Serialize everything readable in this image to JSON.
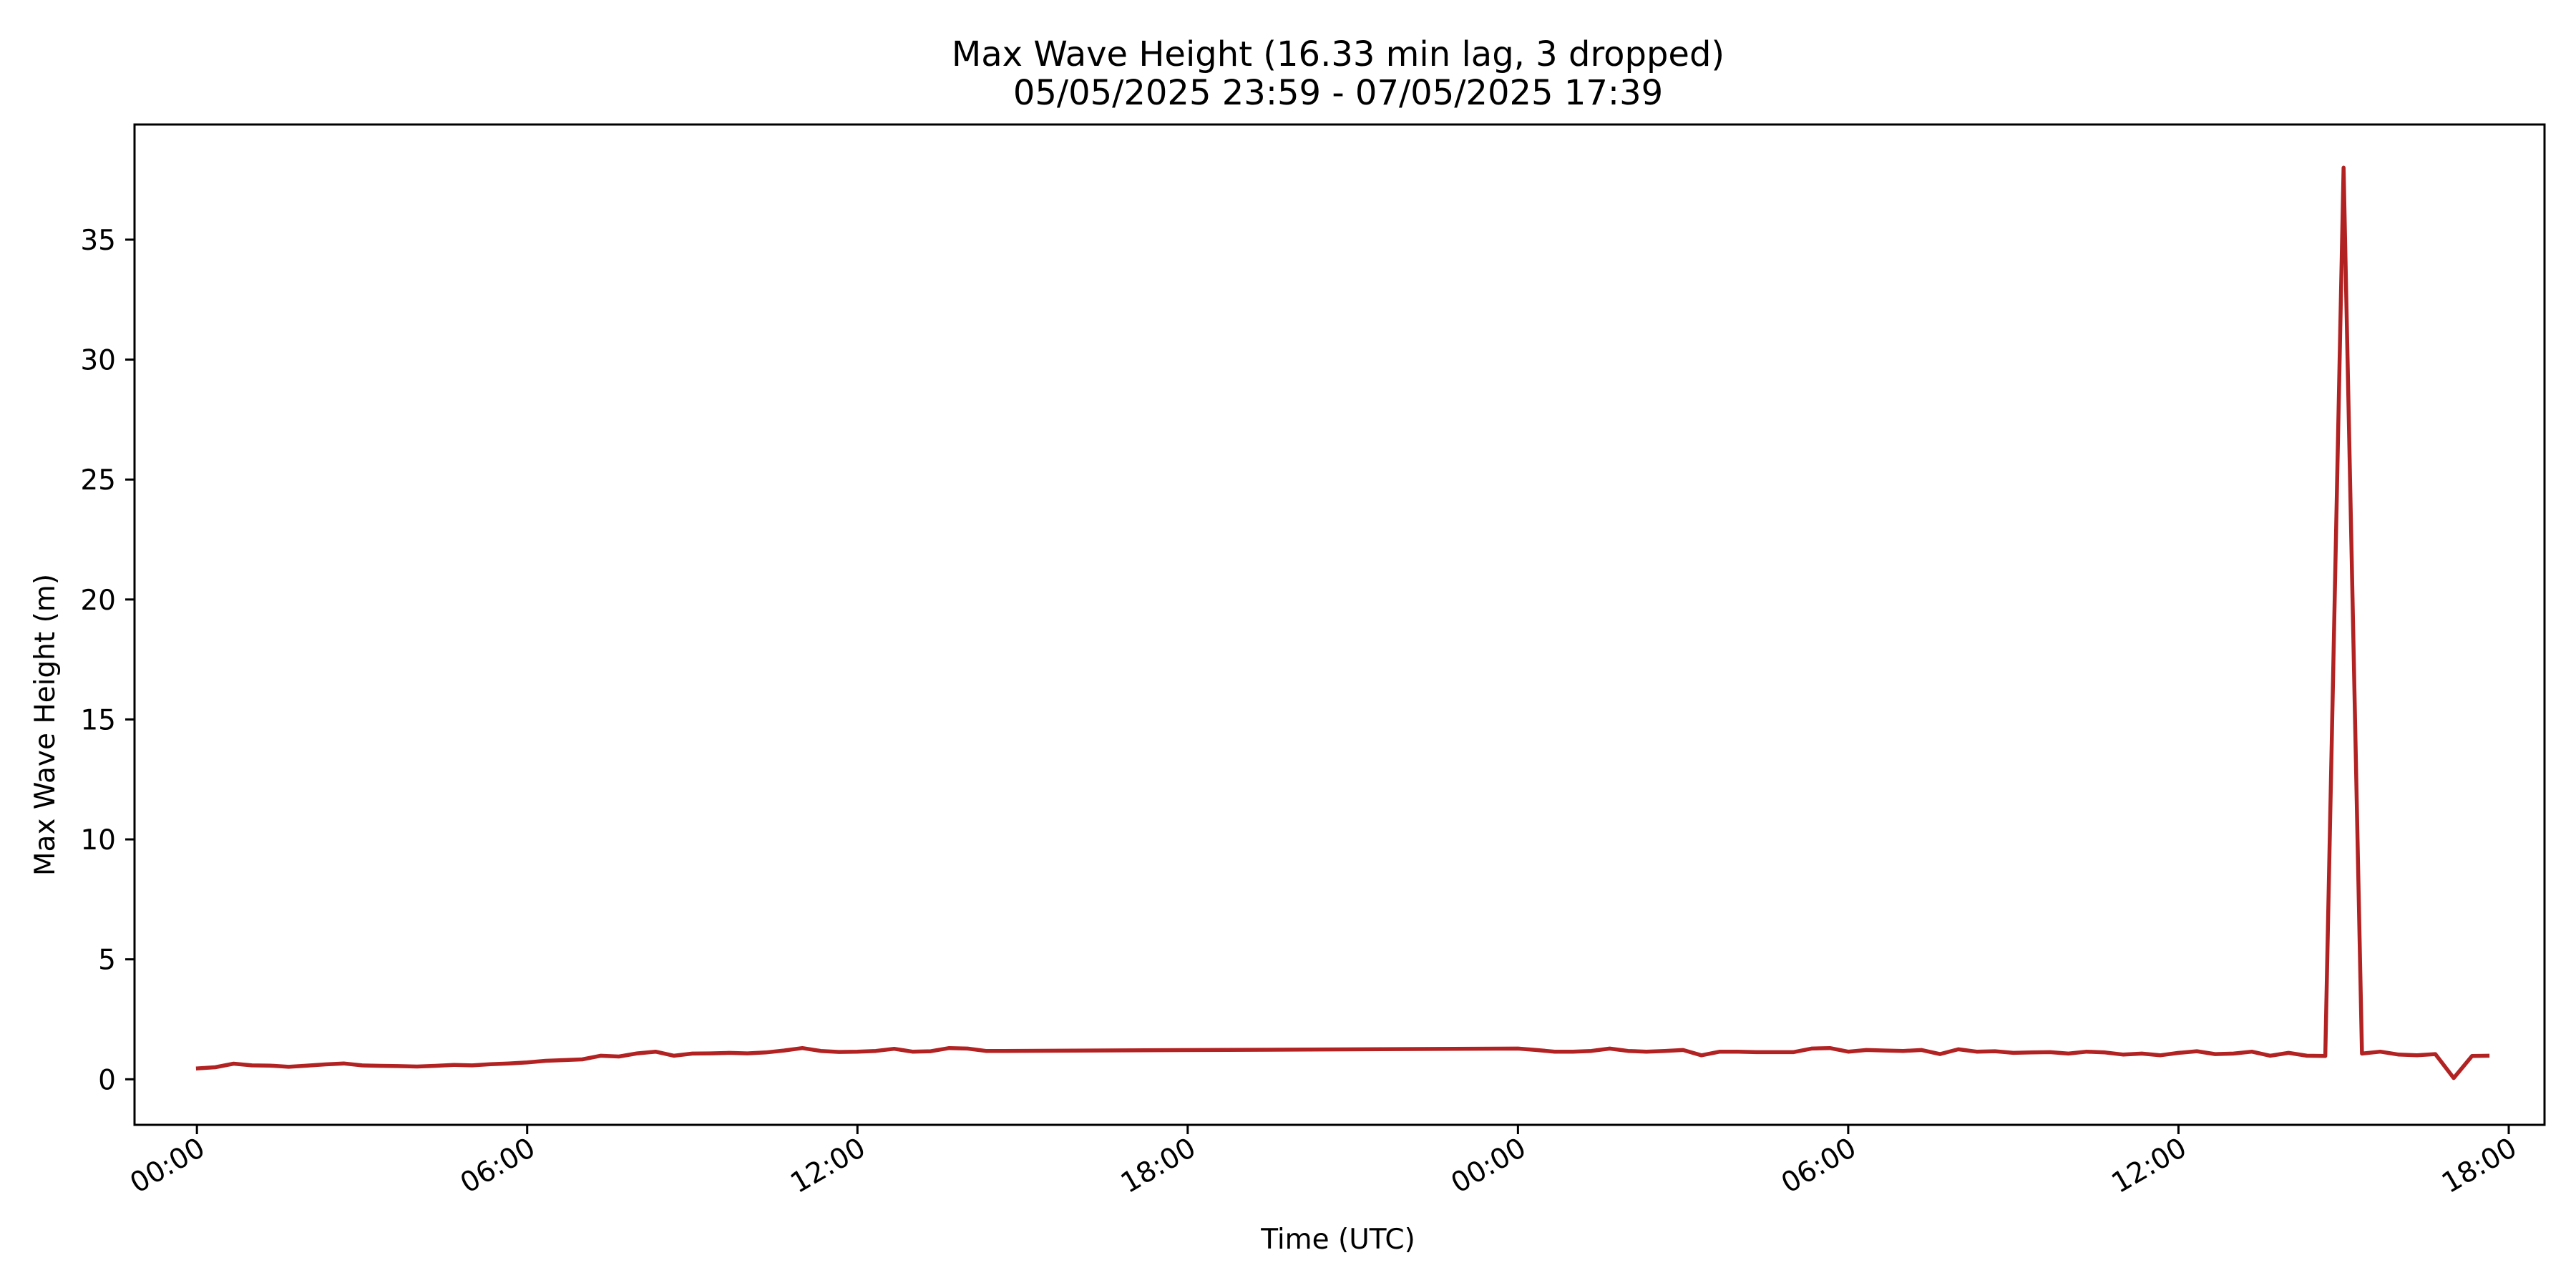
{
  "chart_data": {
    "type": "line",
    "title": "Max Wave Height (16.33 min lag, 3 dropped)",
    "subtitle": "05/05/2025 23:59 - 07/05/2025 17:39",
    "xlabel": "Time (UTC)",
    "ylabel": "Max Wave Height (m)",
    "xlim": [
      "2025-05-05 22:52",
      "2025-05-07 18:39"
    ],
    "ylim": [
      -1.9,
      39.8
    ],
    "x_ticks": [
      {
        "t": "2025-05-06 00:00",
        "label": "00:00"
      },
      {
        "t": "2025-05-06 06:00",
        "label": "06:00"
      },
      {
        "t": "2025-05-06 12:00",
        "label": "12:00"
      },
      {
        "t": "2025-05-06 18:00",
        "label": "18:00"
      },
      {
        "t": "2025-05-07 00:00",
        "label": "00:00"
      },
      {
        "t": "2025-05-07 06:00",
        "label": "06:00"
      },
      {
        "t": "2025-05-07 12:00",
        "label": "12:00"
      },
      {
        "t": "2025-05-07 18:00",
        "label": "18:00"
      }
    ],
    "y_ticks": [
      0,
      5,
      10,
      15,
      20,
      25,
      30,
      35
    ],
    "grid": false,
    "line_color": "#b22222",
    "series": [
      {
        "x": [
          "2025-05-05 23:59",
          "2025-05-06 00:20",
          "2025-05-06 00:40",
          "2025-05-06 01:00",
          "2025-05-06 01:20",
          "2025-05-06 01:40",
          "2025-05-06 02:00",
          "2025-05-06 02:20",
          "2025-05-06 02:40",
          "2025-05-06 03:00",
          "2025-05-06 03:20",
          "2025-05-06 03:40",
          "2025-05-06 04:00",
          "2025-05-06 04:20",
          "2025-05-06 04:40",
          "2025-05-06 05:00",
          "2025-05-06 05:20",
          "2025-05-06 05:40",
          "2025-05-06 06:00",
          "2025-05-06 06:20",
          "2025-05-06 06:40",
          "2025-05-06 07:00",
          "2025-05-06 07:20",
          "2025-05-06 07:40",
          "2025-05-06 08:00",
          "2025-05-06 08:20",
          "2025-05-06 08:40",
          "2025-05-06 09:00",
          "2025-05-06 09:20",
          "2025-05-06 09:40",
          "2025-05-06 10:00",
          "2025-05-06 10:20",
          "2025-05-06 10:40",
          "2025-05-06 11:00",
          "2025-05-06 11:20",
          "2025-05-06 11:40",
          "2025-05-06 12:00",
          "2025-05-06 12:20",
          "2025-05-06 12:40",
          "2025-05-06 13:00",
          "2025-05-06 13:20",
          "2025-05-06 13:40",
          "2025-05-06 14:00",
          "2025-05-06 14:20",
          "2025-05-06 14:40",
          "2025-05-07 00:00",
          "2025-05-07 00:20",
          "2025-05-07 00:40",
          "2025-05-07 01:00",
          "2025-05-07 01:20",
          "2025-05-07 01:40",
          "2025-05-07 02:00",
          "2025-05-07 02:20",
          "2025-05-07 02:40",
          "2025-05-07 03:00",
          "2025-05-07 03:20",
          "2025-05-07 03:40",
          "2025-05-07 04:00",
          "2025-05-07 04:20",
          "2025-05-07 04:40",
          "2025-05-07 05:00",
          "2025-05-07 05:20",
          "2025-05-07 05:40",
          "2025-05-07 06:00",
          "2025-05-07 06:20",
          "2025-05-07 06:40",
          "2025-05-07 07:00",
          "2025-05-07 07:20",
          "2025-05-07 07:40",
          "2025-05-07 08:00",
          "2025-05-07 08:20",
          "2025-05-07 08:40",
          "2025-05-07 09:00",
          "2025-05-07 09:20",
          "2025-05-07 09:40",
          "2025-05-07 10:00",
          "2025-05-07 10:20",
          "2025-05-07 10:40",
          "2025-05-07 11:00",
          "2025-05-07 11:20",
          "2025-05-07 11:40",
          "2025-05-07 12:00",
          "2025-05-07 12:20",
          "2025-05-07 12:40",
          "2025-05-07 13:00",
          "2025-05-07 13:20",
          "2025-05-07 13:40",
          "2025-05-07 14:00",
          "2025-05-07 14:20",
          "2025-05-07 14:40",
          "2025-05-07 15:00",
          "2025-05-07 15:20",
          "2025-05-07 15:40",
          "2025-05-07 16:00",
          "2025-05-07 16:20",
          "2025-05-07 16:40",
          "2025-05-07 17:00",
          "2025-05-07 17:20",
          "2025-05-07 17:39"
        ],
        "y": [
          0.45,
          0.5,
          0.65,
          0.58,
          0.57,
          0.52,
          0.57,
          0.62,
          0.66,
          0.58,
          0.56,
          0.55,
          0.53,
          0.56,
          0.6,
          0.58,
          0.63,
          0.66,
          0.7,
          0.77,
          0.8,
          0.83,
          0.98,
          0.95,
          1.08,
          1.15,
          0.98,
          1.07,
          1.08,
          1.1,
          1.08,
          1.12,
          1.2,
          1.3,
          1.18,
          1.14,
          1.15,
          1.18,
          1.27,
          1.15,
          1.17,
          1.3,
          1.28,
          1.18,
          1.18,
          1.28,
          1.22,
          1.15,
          1.15,
          1.18,
          1.28,
          1.18,
          1.15,
          1.18,
          1.22,
          1.0,
          1.15,
          1.15,
          1.13,
          1.13,
          1.13,
          1.28,
          1.3,
          1.15,
          1.22,
          1.2,
          1.18,
          1.22,
          1.05,
          1.25,
          1.15,
          1.17,
          1.1,
          1.12,
          1.13,
          1.07,
          1.15,
          1.12,
          1.03,
          1.07,
          1.0,
          1.1,
          1.17,
          1.05,
          1.07,
          1.15,
          0.98,
          1.1,
          0.98,
          0.97,
          38.0,
          1.07,
          1.15,
          1.03,
          1.0,
          1.05,
          0.05,
          0.97,
          0.98
        ]
      }
    ]
  }
}
